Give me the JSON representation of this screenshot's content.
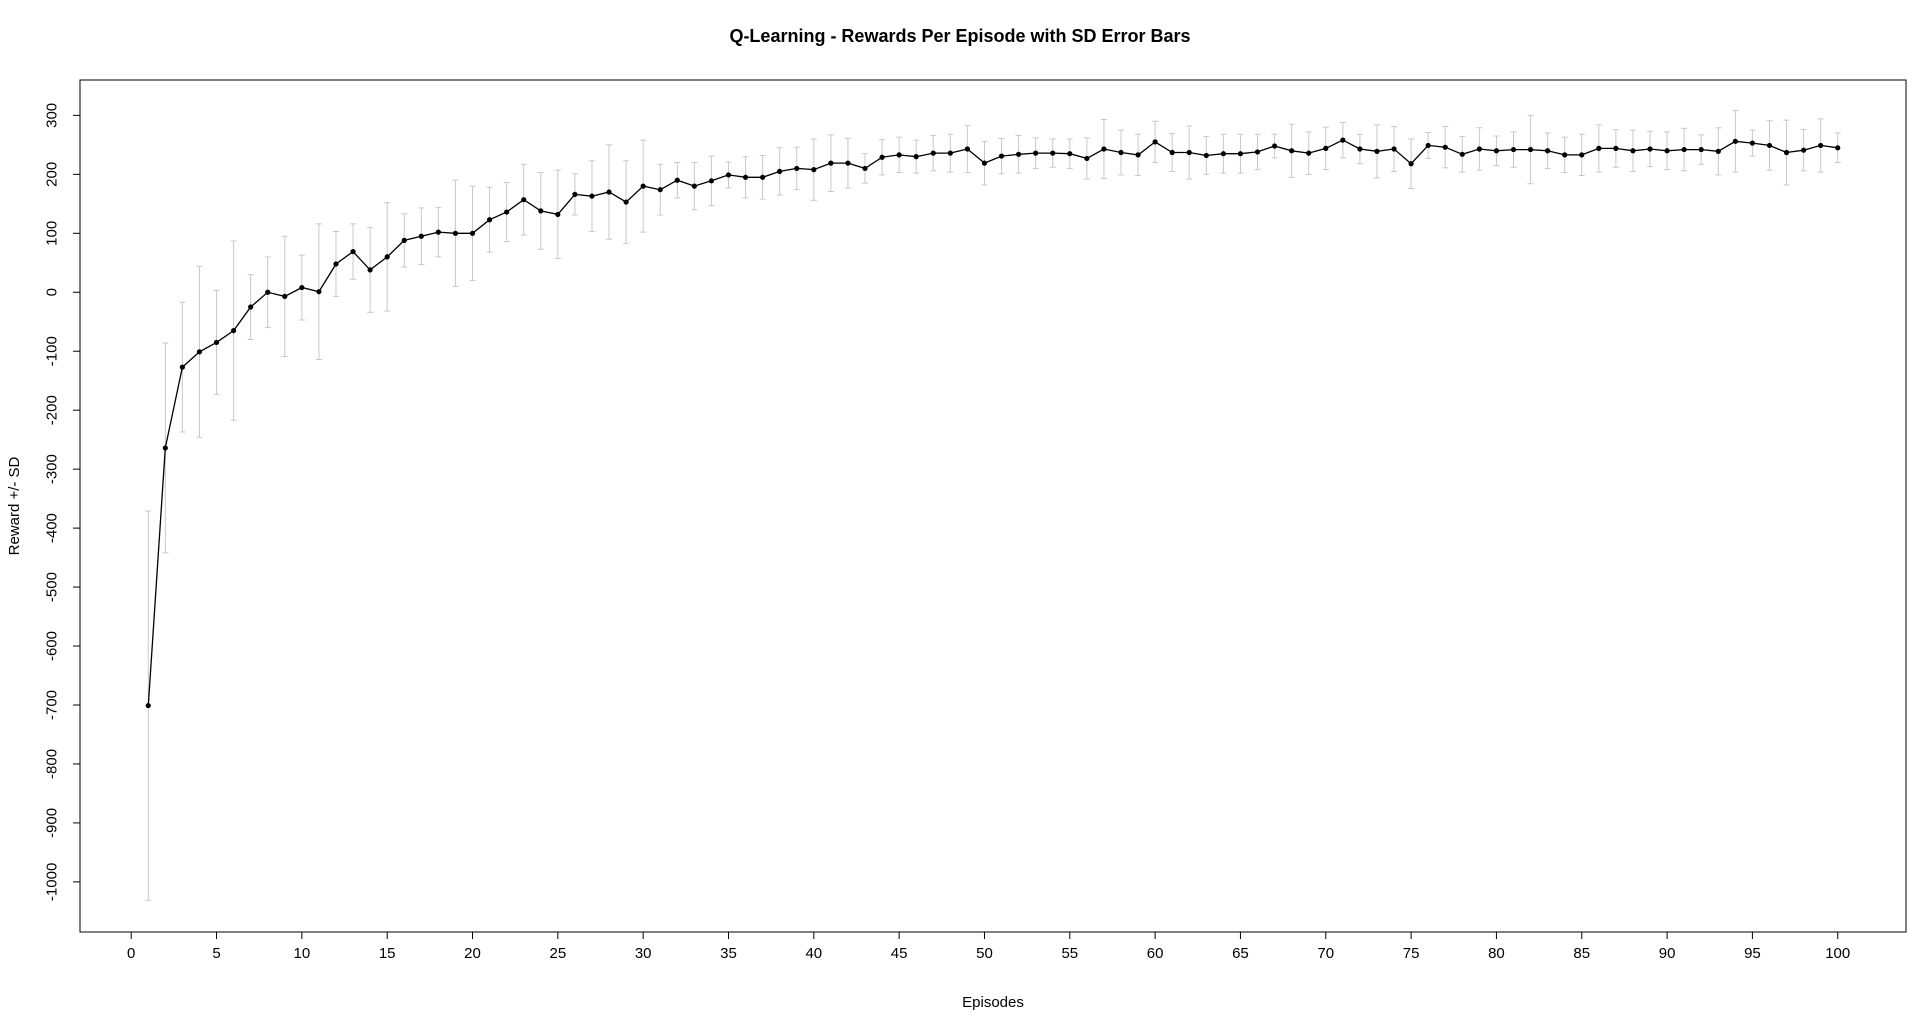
{
  "chart_data": {
    "type": "line",
    "title": "Q-Learning - Rewards Per Episode with SD Error Bars",
    "xlabel": "Episodes",
    "ylabel": "Reward +/- SD",
    "xlim": [
      -3,
      104
    ],
    "ylim": [
      -1085,
      360
    ],
    "x_ticks": [
      0,
      5,
      10,
      15,
      20,
      25,
      30,
      35,
      40,
      45,
      50,
      55,
      60,
      65,
      70,
      75,
      80,
      85,
      90,
      95,
      100
    ],
    "y_ticks": [
      -1000,
      -900,
      -800,
      -700,
      -600,
      -500,
      -400,
      -300,
      -200,
      -100,
      0,
      100,
      200,
      300
    ],
    "grid": false,
    "colors": {
      "line": "#000000",
      "points": "#000000",
      "error_bars": "#c8c8c8",
      "frame": "#000000"
    },
    "series": [
      {
        "x": [
          1,
          2,
          3,
          4,
          5,
          6,
          7,
          8,
          9,
          10,
          11,
          12,
          13,
          14,
          15,
          16,
          17,
          18,
          19,
          20,
          21,
          22,
          23,
          24,
          25,
          26,
          27,
          28,
          29,
          30,
          31,
          32,
          33,
          34,
          35,
          36,
          37,
          38,
          39,
          40,
          41,
          42,
          43,
          44,
          45,
          46,
          47,
          48,
          49,
          50,
          51,
          52,
          53,
          54,
          55,
          56,
          57,
          58,
          59,
          60,
          61,
          62,
          63,
          64,
          65,
          66,
          67,
          68,
          69,
          70,
          71,
          72,
          73,
          74,
          75,
          76,
          77,
          78,
          79,
          80,
          81,
          82,
          83,
          84,
          85,
          86,
          87,
          88,
          89,
          90,
          91,
          92,
          93,
          94,
          95,
          96,
          97,
          98,
          99,
          100
        ],
        "values": [
          -701,
          -264,
          -127,
          -101,
          -85,
          -65,
          -25,
          0,
          -7,
          8,
          1,
          48,
          69,
          38,
          60,
          88,
          95,
          102,
          100,
          100,
          123,
          136,
          157,
          138,
          132,
          166,
          163,
          170,
          153,
          180,
          174,
          190,
          180,
          189,
          199,
          195,
          195,
          205,
          210,
          208,
          219,
          219,
          210,
          229,
          233,
          230,
          236,
          236,
          243,
          219,
          231,
          234,
          236,
          236,
          235,
          227,
          243,
          237,
          233,
          255,
          237,
          237,
          232,
          235,
          235,
          238,
          248,
          240,
          236,
          244,
          258,
          243,
          239,
          243,
          218,
          249,
          246,
          234,
          243,
          240,
          242,
          242,
          240,
          233,
          233,
          244,
          244,
          240,
          243,
          240,
          242,
          242,
          239,
          256,
          253,
          249,
          237,
          241,
          249,
          245
        ],
        "sd": [
          330,
          178,
          110,
          145,
          88,
          152,
          55,
          60,
          102,
          55,
          115,
          55,
          47,
          72,
          92,
          45,
          48,
          42,
          90,
          80,
          55,
          50,
          60,
          65,
          75,
          35,
          60,
          80,
          70,
          78,
          43,
          30,
          40,
          42,
          22,
          35,
          37,
          40,
          36,
          52,
          48,
          42,
          25,
          30,
          30,
          28,
          30,
          32,
          40,
          37,
          30,
          32,
          26,
          24,
          25,
          35,
          50,
          38,
          35,
          35,
          32,
          45,
          32,
          33,
          33,
          30,
          20,
          45,
          36,
          36,
          30,
          25,
          45,
          38,
          42,
          22,
          35,
          30,
          36,
          25,
          30,
          58,
          30,
          30,
          35,
          40,
          32,
          35,
          30,
          32,
          36,
          25,
          40,
          52,
          22,
          42,
          55,
          35,
          45,
          25
        ]
      }
    ]
  }
}
